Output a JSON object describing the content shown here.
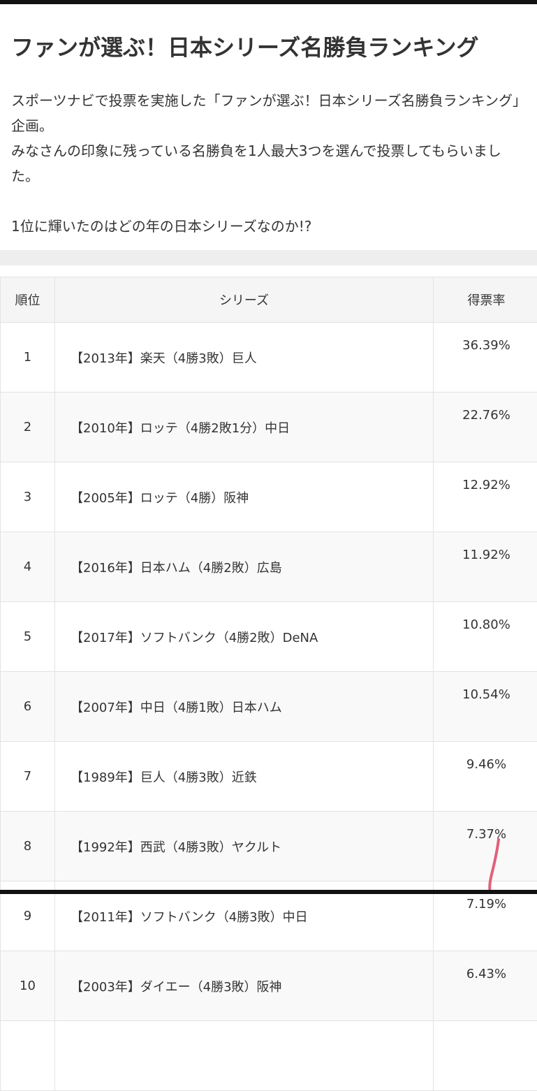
{
  "article": {
    "title": "ファンが選ぶ！日本シリーズ名勝負ランキング",
    "intro_lines": [
      "スポーツナビで投票を実施した「ファンが選ぶ！日本シリーズ名勝負ランキング」企画。",
      "みなさんの印象に残っている名勝負を1人最大3つを選んで投票してもらいました。",
      "1位に輝いたのはどの年の日本シリーズなのか!?"
    ]
  },
  "ranking_table": {
    "headers": {
      "rank": "順位",
      "series": "シリーズ",
      "rate": "得票率"
    },
    "rows": [
      {
        "rank": "1",
        "series": "【2013年】楽天（4勝3敗）巨人",
        "rate": "36.39%"
      },
      {
        "rank": "2",
        "series": "【2010年】ロッテ（4勝2敗1分）中日",
        "rate": "22.76%"
      },
      {
        "rank": "3",
        "series": "【2005年】ロッテ（4勝）阪神",
        "rate": "12.92%"
      },
      {
        "rank": "4",
        "series": "【2016年】日本ハム（4勝2敗）広島",
        "rate": "11.92%"
      },
      {
        "rank": "5",
        "series": "【2017年】ソフトバンク（4勝2敗）DeNA",
        "rate": "10.80%"
      },
      {
        "rank": "6",
        "series": "【2007年】中日（4勝1敗）日本ハム",
        "rate": "10.54%"
      },
      {
        "rank": "7",
        "series": "【1989年】巨人（4勝3敗）近鉄",
        "rate": "9.46%"
      },
      {
        "rank": "8",
        "series": "【1992年】西武（4勝3敗）ヤクルト",
        "rate": "7.37%"
      },
      {
        "rank": "9",
        "series": "【2011年】ソフトバンク（4勝3敗）中日",
        "rate": "7.19%"
      },
      {
        "rank": "10",
        "series": "【2003年】ダイエー（4勝3敗）阪神",
        "rate": "6.43%"
      }
    ]
  },
  "annotation": {
    "pen_color": "#e0607a"
  }
}
